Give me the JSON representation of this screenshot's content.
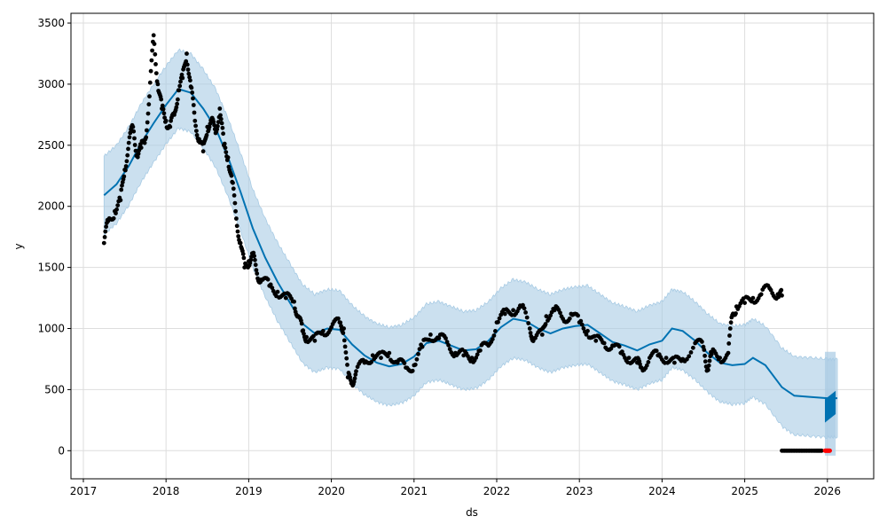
{
  "chart_data": {
    "type": "line",
    "xlabel": "ds",
    "ylabel": "y",
    "xlim": [
      2016.85,
      2026.56
    ],
    "ylim": [
      -230,
      3580
    ],
    "grid": true,
    "x_ticks": [
      2017,
      2018,
      2019,
      2020,
      2021,
      2022,
      2023,
      2024,
      2025,
      2026
    ],
    "y_ticks": [
      0,
      500,
      1000,
      1500,
      2000,
      2500,
      3000,
      3500
    ],
    "colors": {
      "forecast": "#0072B2",
      "interval": "#a8cbe4",
      "observed": "#000000",
      "highlight": "#ff0000",
      "grid": "#dddddd"
    },
    "series": [
      {
        "role": "forecast",
        "points": [
          [
            2017.25,
            2090
          ],
          [
            2017.4,
            2180
          ],
          [
            2017.55,
            2330
          ],
          [
            2017.7,
            2520
          ],
          [
            2017.85,
            2680
          ],
          [
            2018.0,
            2830
          ],
          [
            2018.15,
            2960
          ],
          [
            2018.3,
            2930
          ],
          [
            2018.45,
            2800
          ],
          [
            2018.6,
            2640
          ],
          [
            2018.75,
            2400
          ],
          [
            2018.9,
            2120
          ],
          [
            2019.05,
            1820
          ],
          [
            2019.2,
            1580
          ],
          [
            2019.35,
            1380
          ],
          [
            2019.5,
            1210
          ],
          [
            2019.65,
            1040
          ],
          [
            2019.8,
            960
          ],
          [
            2019.95,
            1000
          ],
          [
            2020.1,
            990
          ],
          [
            2020.25,
            870
          ],
          [
            2020.4,
            780
          ],
          [
            2020.55,
            720
          ],
          [
            2020.7,
            690
          ],
          [
            2020.85,
            710
          ],
          [
            2021.0,
            770
          ],
          [
            2021.15,
            880
          ],
          [
            2021.3,
            900
          ],
          [
            2021.45,
            860
          ],
          [
            2021.6,
            820
          ],
          [
            2021.75,
            830
          ],
          [
            2021.9,
            900
          ],
          [
            2022.05,
            1010
          ],
          [
            2022.2,
            1080
          ],
          [
            2022.35,
            1060
          ],
          [
            2022.5,
            1000
          ],
          [
            2022.65,
            960
          ],
          [
            2022.8,
            1000
          ],
          [
            2022.95,
            1020
          ],
          [
            2023.1,
            1030
          ],
          [
            2023.25,
            960
          ],
          [
            2023.4,
            890
          ],
          [
            2023.55,
            860
          ],
          [
            2023.7,
            820
          ],
          [
            2023.85,
            870
          ],
          [
            2024.0,
            900
          ],
          [
            2024.12,
            1000
          ],
          [
            2024.25,
            980
          ],
          [
            2024.4,
            900
          ],
          [
            2024.55,
            800
          ],
          [
            2024.7,
            720
          ],
          [
            2024.85,
            700
          ],
          [
            2025.0,
            710
          ],
          [
            2025.1,
            760
          ],
          [
            2025.25,
            700
          ],
          [
            2025.45,
            520
          ],
          [
            2025.6,
            450
          ],
          [
            2025.8,
            440
          ],
          [
            2026.0,
            430
          ],
          [
            2026.12,
            430
          ]
        ]
      },
      {
        "role": "interval",
        "half_width": 320
      },
      {
        "role": "observed",
        "points": [
          [
            2017.25,
            1700
          ],
          [
            2017.3,
            1880
          ],
          [
            2017.38,
            1960
          ],
          [
            2017.45,
            2050
          ],
          [
            2017.5,
            2300
          ],
          [
            2017.55,
            2520
          ],
          [
            2017.6,
            2650
          ],
          [
            2017.65,
            2420
          ],
          [
            2017.7,
            2480
          ],
          [
            2017.75,
            2550
          ],
          [
            2017.8,
            2900
          ],
          [
            2017.85,
            3400
          ],
          [
            2017.9,
            3000
          ],
          [
            2017.95,
            2800
          ],
          [
            2018.0,
            2700
          ],
          [
            2018.05,
            2650
          ],
          [
            2018.1,
            2750
          ],
          [
            2018.15,
            2950
          ],
          [
            2018.2,
            3050
          ],
          [
            2018.25,
            3250
          ],
          [
            2018.3,
            2980
          ],
          [
            2018.35,
            2700
          ],
          [
            2018.4,
            2550
          ],
          [
            2018.45,
            2450
          ],
          [
            2018.5,
            2650
          ],
          [
            2018.55,
            2700
          ],
          [
            2018.6,
            2600
          ],
          [
            2018.65,
            2800
          ],
          [
            2018.7,
            2500
          ],
          [
            2018.75,
            2400
          ],
          [
            2018.8,
            2200
          ],
          [
            2018.85,
            1900
          ],
          [
            2018.9,
            1700
          ],
          [
            2018.95,
            1500
          ],
          [
            2019.0,
            1550
          ],
          [
            2019.05,
            1600
          ],
          [
            2019.1,
            1450
          ],
          [
            2019.15,
            1400
          ],
          [
            2019.25,
            1350
          ],
          [
            2019.35,
            1300
          ],
          [
            2019.45,
            1250
          ],
          [
            2019.55,
            1220
          ],
          [
            2019.6,
            1100
          ],
          [
            2019.65,
            980
          ],
          [
            2019.7,
            930
          ],
          [
            2019.8,
            900
          ],
          [
            2019.9,
            980
          ],
          [
            2020.0,
            1010
          ],
          [
            2020.1,
            1050
          ],
          [
            2020.15,
            1000
          ],
          [
            2020.2,
            600
          ],
          [
            2020.25,
            560
          ],
          [
            2020.3,
            650
          ],
          [
            2020.4,
            720
          ],
          [
            2020.5,
            780
          ],
          [
            2020.6,
            760
          ],
          [
            2020.7,
            800
          ],
          [
            2020.8,
            720
          ],
          [
            2020.9,
            680
          ],
          [
            2021.0,
            700
          ],
          [
            2021.1,
            850
          ],
          [
            2021.2,
            950
          ],
          [
            2021.3,
            920
          ],
          [
            2021.4,
            890
          ],
          [
            2021.5,
            800
          ],
          [
            2021.6,
            780
          ],
          [
            2021.7,
            760
          ],
          [
            2021.8,
            820
          ],
          [
            2021.9,
            860
          ],
          [
            2022.0,
            1050
          ],
          [
            2022.1,
            1120
          ],
          [
            2022.2,
            1150
          ],
          [
            2022.3,
            1180
          ],
          [
            2022.4,
            1000
          ],
          [
            2022.45,
            920
          ],
          [
            2022.55,
            950
          ],
          [
            2022.6,
            1100
          ],
          [
            2022.7,
            1150
          ],
          [
            2022.8,
            1080
          ],
          [
            2022.9,
            1120
          ],
          [
            2023.0,
            1050
          ],
          [
            2023.1,
            980
          ],
          [
            2023.2,
            900
          ],
          [
            2023.3,
            880
          ],
          [
            2023.4,
            860
          ],
          [
            2023.5,
            800
          ],
          [
            2023.6,
            760
          ],
          [
            2023.7,
            720
          ],
          [
            2023.75,
            680
          ],
          [
            2023.85,
            760
          ],
          [
            2023.95,
            780
          ],
          [
            2024.05,
            760
          ],
          [
            2024.15,
            720
          ],
          [
            2024.25,
            750
          ],
          [
            2024.4,
            880
          ],
          [
            2024.5,
            850
          ],
          [
            2024.55,
            670
          ],
          [
            2024.6,
            790
          ],
          [
            2024.7,
            760
          ],
          [
            2024.8,
            800
          ],
          [
            2024.85,
            1110
          ],
          [
            2024.9,
            1180
          ],
          [
            2025.0,
            1210
          ],
          [
            2025.1,
            1250
          ],
          [
            2025.2,
            1280
          ],
          [
            2025.3,
            1330
          ],
          [
            2025.4,
            1280
          ],
          [
            2025.45,
            1270
          ]
        ]
      },
      {
        "role": "observed",
        "points": [
          [
            2025.45,
            0
          ],
          [
            2025.55,
            0
          ],
          [
            2025.65,
            0
          ],
          [
            2025.75,
            0
          ],
          [
            2025.85,
            0
          ],
          [
            2025.93,
            0
          ]
        ]
      },
      {
        "role": "highlight",
        "points": [
          [
            2025.97,
            0
          ],
          [
            2026.0,
            0
          ],
          [
            2026.03,
            0
          ]
        ]
      },
      {
        "role": "forecast-band",
        "x_start": 2025.97,
        "x_end": 2026.1,
        "low_start": 230,
        "low_end": 300,
        "high_start": 420,
        "high_end": 490,
        "interval_low": -40,
        "interval_high": 810
      }
    ]
  }
}
